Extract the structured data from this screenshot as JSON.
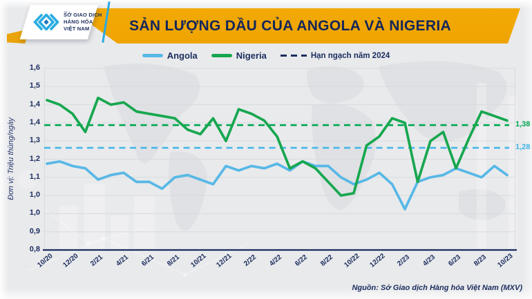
{
  "header": {
    "title": "SẢN LƯỢNG DẦU CỦA ANGOLA VÀ NIGERIA",
    "logo": {
      "line1": "SỞ GIAO DỊCH",
      "line2": "HÀNG HÓA",
      "line3": "VIỆT NAM",
      "tm": "™"
    }
  },
  "legend": [
    {
      "label": "Angola",
      "color": "#58b8e6",
      "style": "line"
    },
    {
      "label": "Nigeria",
      "color": "#17a74f",
      "style": "line"
    },
    {
      "label": "Hạn ngạch năm 2024",
      "color": "#1b2d5e",
      "style": "dashed"
    }
  ],
  "y_axis": {
    "unit_label": "Đơn vị: Triệu thùng/ngày",
    "tick_labels": [
      "1,6",
      "1,5",
      "1,4",
      "1,4",
      "1,3",
      "1,2",
      "1,1",
      "1,0",
      "1,0",
      "0,9",
      "0,8"
    ]
  },
  "x_axis": {
    "tick_labels": [
      "10/20",
      "12/20",
      "2/21",
      "4/21",
      "6/21",
      "8/21",
      "10/21",
      "12/21",
      "2/22",
      "4/22",
      "6/22",
      "8/22",
      "10/22",
      "12/22",
      "2/23",
      "4/23",
      "6/23",
      "8/23",
      "10/23"
    ]
  },
  "source": "Nguồn: Sở Giao dịch Hàng hóa Việt Nam (MXV)",
  "colors": {
    "gold": "#f0a500",
    "navy": "#1b2d5e",
    "angola_blue": "#58b8e6",
    "nigeria_green": "#17a74f",
    "quota_green": "#00a651",
    "quota_blue": "#45b7e8",
    "grid": "#d8dadc",
    "background": "#e9eaec"
  },
  "chart_data": {
    "type": "line",
    "title": "SẢN LƯỢNG DẦU CỦA ANGOLA VÀ NIGERIA",
    "ylabel": "Đơn vị: Triệu thùng/ngày",
    "ylim": [
      0.8,
      1.6
    ],
    "ytick_step": 0.08,
    "grid": true,
    "legend_position": "top",
    "x": [
      "10/20",
      "11/20",
      "12/20",
      "1/21",
      "2/21",
      "3/21",
      "4/21",
      "5/21",
      "6/21",
      "7/21",
      "8/21",
      "9/21",
      "10/21",
      "11/21",
      "12/21",
      "1/22",
      "2/22",
      "3/22",
      "4/22",
      "5/22",
      "6/22",
      "7/22",
      "8/22",
      "9/22",
      "10/22",
      "11/22",
      "12/22",
      "1/23",
      "2/23",
      "3/23",
      "4/23",
      "5/23",
      "6/23",
      "7/23",
      "8/23",
      "9/23",
      "10/23"
    ],
    "series": [
      {
        "name": "Angola",
        "color": "#58b8e6",
        "values": [
          1.18,
          1.19,
          1.17,
          1.16,
          1.11,
          1.13,
          1.14,
          1.1,
          1.1,
          1.07,
          1.12,
          1.13,
          1.11,
          1.09,
          1.17,
          1.15,
          1.17,
          1.16,
          1.18,
          1.15,
          1.19,
          1.17,
          1.17,
          1.12,
          1.09,
          1.11,
          1.14,
          1.09,
          0.98,
          1.1,
          1.12,
          1.13,
          1.16,
          1.14,
          1.12,
          1.17,
          1.13
        ]
      },
      {
        "name": "Nigeria",
        "color": "#17a74f",
        "values": [
          1.46,
          1.44,
          1.4,
          1.32,
          1.47,
          1.44,
          1.45,
          1.41,
          1.4,
          1.39,
          1.38,
          1.33,
          1.31,
          1.38,
          1.28,
          1.42,
          1.4,
          1.37,
          1.3,
          1.16,
          1.19,
          1.16,
          1.1,
          1.04,
          1.05,
          1.26,
          1.3,
          1.38,
          1.36,
          1.1,
          1.28,
          1.32,
          1.16,
          1.29,
          1.41,
          1.39,
          1.37
        ]
      }
    ],
    "reference_lines": [
      {
        "name": "Hạn ngạch năm 2024 (Nigeria)",
        "value": 1.38,
        "label": "1,38",
        "color": "#00a651",
        "style": "dashed"
      },
      {
        "name": "Hạn ngạch năm 2024 (Angola)",
        "value": 1.28,
        "label": "1,28",
        "color": "#45b7e8",
        "style": "dashed"
      }
    ]
  }
}
